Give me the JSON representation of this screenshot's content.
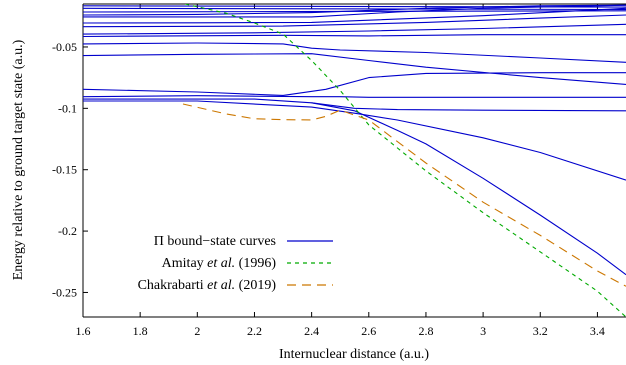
{
  "chart_data": {
    "type": "line",
    "xlabel": "Internuclear distance (a.u.)",
    "ylabel": "Energy relative to ground target state (a.u.)",
    "xlim": [
      1.6,
      3.5
    ],
    "ylim": [
      -0.27,
      -0.015
    ],
    "x_ticks": [
      1.6,
      1.8,
      2,
      2.2,
      2.4,
      2.6,
      2.8,
      3,
      3.2,
      3.4
    ],
    "x_tick_labels": [
      "1.6",
      "1.8",
      "2",
      "2.2",
      "2.4",
      "2.6",
      "2.8",
      "3",
      "3.2",
      "3.4"
    ],
    "y_ticks": [
      -0.05,
      -0.1,
      -0.15,
      -0.2,
      -0.25
    ],
    "y_tick_labels": [
      "-0.05",
      "-0.1",
      "-0.15",
      "-0.2",
      "-0.25"
    ],
    "grid": false,
    "legend_position": "bottom-left",
    "legend": [
      {
        "label_parts": [
          {
            "text": "Π bound−state curves",
            "italic": false
          }
        ],
        "color": "#0000cc",
        "dash": "solid"
      },
      {
        "label_parts": [
          {
            "text": "Amitay ",
            "italic": false
          },
          {
            "text": "et al.",
            "italic": true
          },
          {
            "text": " (1996)",
            "italic": false
          }
        ],
        "color": "#00aa00",
        "dash": "short"
      },
      {
        "label_parts": [
          {
            "text": "Chakrabarti ",
            "italic": false
          },
          {
            "text": "et al.",
            "italic": true
          },
          {
            "text": " (2019)",
            "italic": false
          }
        ],
        "color": "#cc7700",
        "dash": "long"
      }
    ],
    "series": [
      {
        "group": "bound",
        "color": "#0000cc",
        "dash": "solid",
        "x": [
          1.6,
          3.5
        ],
        "y": [
          -0.0165,
          -0.0175
        ]
      },
      {
        "group": "bound",
        "color": "#0000cc",
        "dash": "solid",
        "x": [
          1.6,
          3.5
        ],
        "y": [
          -0.0185,
          -0.0195
        ]
      },
      {
        "group": "bound",
        "color": "#0000cc",
        "dash": "solid",
        "x": [
          1.6,
          3.5
        ],
        "y": [
          -0.0215,
          -0.0205
        ]
      },
      {
        "group": "bound",
        "color": "#0000cc",
        "dash": "solid",
        "x": [
          1.6,
          2.0,
          2.4,
          2.8,
          3.2,
          3.5
        ],
        "y": [
          -0.024,
          -0.0235,
          -0.022,
          -0.0185,
          -0.0165,
          -0.016
        ]
      },
      {
        "group": "bound",
        "color": "#0000cc",
        "dash": "solid",
        "x": [
          1.6,
          2.4,
          2.7,
          3.0,
          3.5
        ],
        "y": [
          -0.0255,
          -0.0255,
          -0.0215,
          -0.0185,
          -0.016
        ]
      },
      {
        "group": "bound",
        "color": "#0000cc",
        "dash": "solid",
        "x": [
          1.6,
          2.0,
          2.4,
          3.0,
          3.5
        ],
        "y": [
          -0.0305,
          -0.0303,
          -0.03,
          -0.0245,
          -0.0185
        ]
      },
      {
        "group": "bound",
        "color": "#0000cc",
        "dash": "solid",
        "x": [
          1.6,
          2.3,
          2.8,
          3.2,
          3.5
        ],
        "y": [
          -0.0335,
          -0.033,
          -0.03,
          -0.0265,
          -0.024
        ]
      },
      {
        "group": "bound",
        "color": "#0000cc",
        "dash": "solid",
        "x": [
          1.6,
          2.2,
          2.6,
          3.0,
          3.5
        ],
        "y": [
          -0.0395,
          -0.0385,
          -0.037,
          -0.035,
          -0.0315
        ]
      },
      {
        "group": "bound",
        "color": "#0000cc",
        "dash": "solid",
        "x": [
          1.6,
          2.3,
          2.6,
          3.0,
          3.5
        ],
        "y": [
          -0.0415,
          -0.0405,
          -0.041,
          -0.04,
          -0.04
        ]
      },
      {
        "group": "bound",
        "color": "#0000cc",
        "dash": "solid",
        "x": [
          1.6,
          2.0,
          2.3,
          2.4,
          2.5,
          2.8,
          3.2,
          3.5
        ],
        "y": [
          -0.0475,
          -0.0468,
          -0.0475,
          -0.051,
          -0.0525,
          -0.0545,
          -0.059,
          -0.0625
        ]
      },
      {
        "group": "bound",
        "color": "#0000cc",
        "dash": "solid",
        "x": [
          1.6,
          2.0,
          2.4,
          2.6,
          2.8,
          3.2,
          3.5
        ],
        "y": [
          -0.057,
          -0.056,
          -0.0555,
          -0.061,
          -0.0665,
          -0.075,
          -0.0805
        ]
      },
      {
        "group": "bound",
        "color": "#0000cc",
        "dash": "solid",
        "x": [
          1.6,
          2.0,
          2.3,
          2.45,
          2.6,
          2.8,
          3.2,
          3.5
        ],
        "y": [
          -0.0845,
          -0.0867,
          -0.0895,
          -0.0845,
          -0.075,
          -0.0715,
          -0.071,
          -0.071
        ]
      },
      {
        "group": "bound",
        "color": "#0000cc",
        "dash": "solid",
        "x": [
          1.6,
          2.0,
          2.4,
          2.5,
          2.6,
          3.0,
          3.5
        ],
        "y": [
          -0.0905,
          -0.0897,
          -0.0905,
          -0.0905,
          -0.091,
          -0.091,
          -0.091
        ]
      },
      {
        "group": "bound",
        "color": "#0000cc",
        "dash": "solid",
        "x": [
          1.6,
          2.2,
          2.4,
          2.55,
          2.7,
          3.0,
          3.5
        ],
        "y": [
          -0.0925,
          -0.0925,
          -0.0955,
          -0.1,
          -0.101,
          -0.1015,
          -0.102
        ]
      },
      {
        "group": "bound",
        "color": "#0000cc",
        "dash": "solid",
        "x": [
          1.6,
          2.0,
          2.4,
          2.55,
          2.7,
          3.0,
          3.2,
          3.5
        ],
        "y": [
          -0.094,
          -0.094,
          -0.099,
          -0.104,
          -0.1095,
          -0.124,
          -0.136,
          -0.1585
        ]
      },
      {
        "group": "bound",
        "color": "#0000cc",
        "dash": "solid",
        "x": [
          2.4,
          2.55,
          2.7,
          2.8,
          3.0,
          3.2,
          3.4,
          3.5
        ],
        "y": [
          -0.0955,
          -0.102,
          -0.118,
          -0.129,
          -0.157,
          -0.187,
          -0.218,
          -0.2355
        ]
      },
      {
        "name": "Amitay et al. (1996)",
        "color": "#00aa00",
        "dash": "short",
        "x": [
          1.93,
          2.1,
          2.2,
          2.3,
          2.4,
          2.5,
          2.6,
          2.8,
          3.0,
          3.2,
          3.4,
          3.5
        ],
        "y": [
          -0.0135,
          -0.0225,
          -0.0305,
          -0.0395,
          -0.061,
          -0.0855,
          -0.1135,
          -0.151,
          -0.185,
          -0.217,
          -0.249,
          -0.27
        ]
      },
      {
        "name": "Chakrabarti et al. (2019)",
        "color": "#cc7700",
        "dash": "long",
        "x": [
          1.95,
          2.1,
          2.2,
          2.3,
          2.4,
          2.45,
          2.5,
          2.6,
          2.8,
          3.0,
          3.2,
          3.4,
          3.5
        ],
        "y": [
          -0.0965,
          -0.1045,
          -0.1085,
          -0.1092,
          -0.1095,
          -0.1065,
          -0.1015,
          -0.1095,
          -0.1445,
          -0.1765,
          -0.2035,
          -0.2325,
          -0.245
        ]
      }
    ]
  }
}
